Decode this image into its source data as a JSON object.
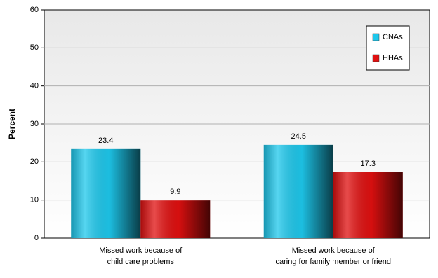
{
  "chart_data": {
    "type": "bar",
    "y_label": "Percent",
    "categories": [
      [
        "Missed work because of",
        "child care problems"
      ],
      [
        "Missed work because of",
        "caring for family member or friend"
      ]
    ],
    "series": [
      {
        "name": "CNAs",
        "color": "#1ec8ec",
        "values": [
          23.4,
          24.5
        ]
      },
      {
        "name": "HHAs",
        "color": "#e01010",
        "values": [
          9.9,
          17.3
        ]
      }
    ],
    "ylim": [
      0,
      60
    ],
    "yticks": [
      0,
      10,
      20,
      30,
      40,
      50,
      60
    ],
    "grid": true,
    "legend": "top-right"
  }
}
